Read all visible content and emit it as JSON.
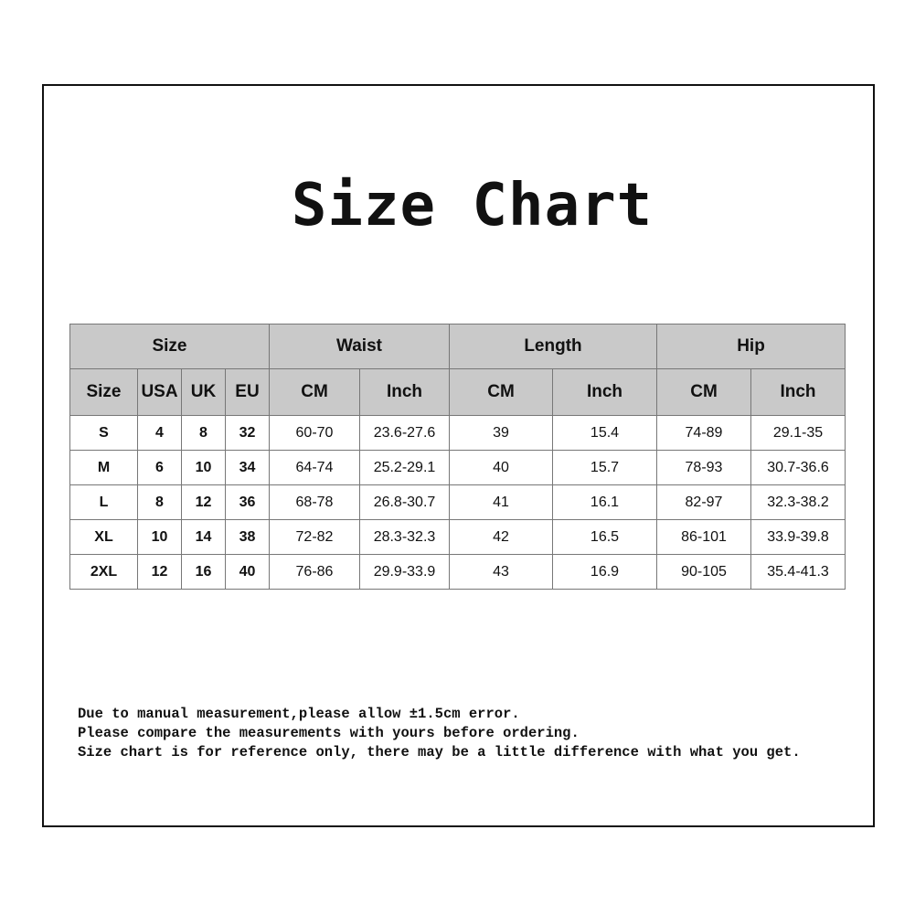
{
  "title": "Size Chart",
  "chart_data": {
    "type": "table",
    "group_headers": [
      "Size",
      "Waist",
      "Length",
      "Hip"
    ],
    "columns": [
      "Size",
      "USA",
      "UK",
      "EU",
      "CM",
      "Inch",
      "CM",
      "Inch",
      "CM",
      "Inch"
    ],
    "rows": [
      [
        "S",
        "4",
        "8",
        "32",
        "60-70",
        "23.6-27.6",
        "39",
        "15.4",
        "74-89",
        "29.1-35"
      ],
      [
        "M",
        "6",
        "10",
        "34",
        "64-74",
        "25.2-29.1",
        "40",
        "15.7",
        "78-93",
        "30.7-36.6"
      ],
      [
        "L",
        "8",
        "12",
        "36",
        "68-78",
        "26.8-30.7",
        "41",
        "16.1",
        "82-97",
        "32.3-38.2"
      ],
      [
        "XL",
        "10",
        "14",
        "38",
        "72-82",
        "28.3-32.3",
        "42",
        "16.5",
        "86-101",
        "33.9-39.8"
      ],
      [
        "2XL",
        "12",
        "16",
        "40",
        "76-86",
        "29.9-33.9",
        "43",
        "16.9",
        "90-105",
        "35.4-41.3"
      ]
    ]
  },
  "notes": [
    "Due to manual measurement,please allow ±1.5cm error.",
    "Please compare the measurements with yours before ordering.",
    "Size chart is for reference only, there may be a little difference with what you get."
  ],
  "colors": {
    "header_bg": "#c9c9c9",
    "border": "#777777",
    "frame": "#111111"
  }
}
